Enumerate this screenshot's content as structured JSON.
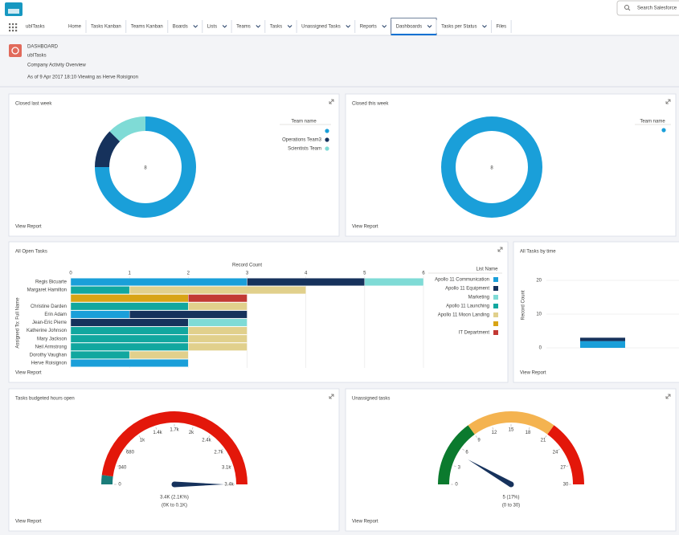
{
  "app": {
    "name": "ubITasks",
    "search_placeholder": "Search Salesforce"
  },
  "nav": {
    "items": [
      {
        "label": "Home"
      },
      {
        "label": "Tasks Kanban"
      },
      {
        "label": "Teams Kanban"
      },
      {
        "label": "Boards",
        "menu": true
      },
      {
        "label": "Lists",
        "menu": true
      },
      {
        "label": "Teams",
        "menu": true
      },
      {
        "label": "Tasks",
        "menu": true
      },
      {
        "label": "Unassigned Tasks",
        "menu": true
      },
      {
        "label": "Reports",
        "menu": true
      },
      {
        "label": "Dashboards",
        "menu": true,
        "active": true
      },
      {
        "label": "Tasks per Status",
        "menu": true
      },
      {
        "label": "Files"
      }
    ]
  },
  "header": {
    "kicker": "DASHBOARD",
    "title": "ubITasks",
    "subtitle": "Company Activity Overview",
    "meta": "As of 9 Apr 2017 18:10·Viewing as Herve Roisignon"
  },
  "widgets": [
    {
      "title": "Closed last week",
      "type": "donut",
      "total": 8,
      "legend_title": "Team name",
      "series": [
        {
          "name": null,
          "color": "#1a9fd9",
          "value": 6
        },
        {
          "name": "Operations Team3",
          "color": "#16325c",
          "value": 1
        },
        {
          "name": "Scientists Team",
          "color": "#7fdbd6",
          "value": 1
        }
      ],
      "link": "View Report"
    },
    {
      "title": "Closed this week",
      "type": "donut",
      "total": 8,
      "legend_title": "Team name",
      "series": [
        {
          "name": null,
          "color": "#1a9fd9",
          "value": 8
        }
      ],
      "link": "View Report"
    },
    {
      "title": "All Open Tasks",
      "type": "hbar",
      "x_title": "Record Count",
      "y_title": "Assigned To: Full Name",
      "categories": [
        "Regis Bicuarte",
        "Margaret Hamilton",
        null,
        "Christine Darden",
        "Erin Adam",
        "Jean-Eric Pierre",
        "Katherine Johnson",
        "Mary Jackson",
        "Neil Armstrong",
        "Dorothy Vaughan",
        "Herve Roisignon"
      ],
      "xlim": [
        0,
        6
      ],
      "xticks": [
        0,
        1,
        2,
        3,
        4,
        5,
        6
      ],
      "legend_title": "List Name",
      "series": [
        {
          "name": "Apollo 11 Communication",
          "color": "#1a9fd9",
          "values": [
            3,
            null,
            null,
            null,
            1,
            null,
            null,
            null,
            null,
            null,
            2
          ]
        },
        {
          "name": "Apollo 11 Equipment",
          "color": "#16325c",
          "values": [
            2,
            null,
            null,
            null,
            2,
            2,
            null,
            null,
            null,
            null,
            null
          ]
        },
        {
          "name": "Marketing",
          "color": "#7fdbd6",
          "values": [
            1,
            null,
            null,
            null,
            null,
            1,
            null,
            null,
            null,
            null,
            null
          ]
        },
        {
          "name": "Apollo 11 Launching",
          "color": "#11a79f",
          "values": [
            null,
            1,
            null,
            2,
            null,
            null,
            2,
            2,
            2,
            1,
            null
          ]
        },
        {
          "name": "Apollo 11 Moon Landing",
          "color": "#e1d08c",
          "values": [
            null,
            3,
            null,
            1,
            null,
            null,
            1,
            1,
            1,
            1,
            null
          ]
        },
        {
          "name": null,
          "color": "#d8a416",
          "values": [
            null,
            null,
            2,
            null,
            null,
            null,
            null,
            null,
            null,
            null,
            null
          ]
        },
        {
          "name": "IT Department",
          "color": "#c23934",
          "values": [
            null,
            null,
            1,
            null,
            null,
            null,
            null,
            null,
            null,
            null,
            null
          ]
        }
      ],
      "link": "View Report"
    },
    {
      "title": "All Tasks by time",
      "type": "column",
      "y_title": "Record Count",
      "categories": [
        null
      ],
      "ylim": [
        0,
        20
      ],
      "yticks": [
        0,
        10,
        20
      ],
      "series": [
        {
          "name": null,
          "color": "#1a9fd9",
          "values": [
            2
          ]
        },
        {
          "name": null,
          "color": "#16325c",
          "values": [
            1
          ]
        }
      ],
      "link": "View Report"
    },
    {
      "title": "Tasks budgeted hours open",
      "type": "gauge",
      "lim": [
        0,
        3400
      ],
      "ticks": [
        0,
        340,
        680,
        {
          "value": 1020,
          "label": "1k"
        },
        {
          "value": 1360,
          "label": "1.4k"
        },
        {
          "value": 1700,
          "label": "1.7k"
        },
        {
          "value": 2040,
          "label": "2k"
        },
        {
          "value": 2380,
          "label": "2.4k"
        },
        {
          "value": 2720,
          "label": "2.7k"
        },
        {
          "value": 3060,
          "label": "3.1k"
        },
        {
          "value": 3400,
          "label": "3.4k"
        }
      ],
      "bands": [
        {
          "from": 0,
          "to": 140,
          "color": "#1b7d7a"
        },
        {
          "from": 140,
          "to": 3400,
          "color": "#e3170a"
        }
      ],
      "value": 3400,
      "value_label": "3.4K (2.1K%)",
      "range_label": "(0K to 0.1K)",
      "value_color": "#c23934",
      "link": "View Report"
    },
    {
      "title": "Unassigned tasks",
      "type": "gauge",
      "lim": [
        0,
        30
      ],
      "ticks": [
        0,
        3,
        6,
        9,
        12,
        15,
        18,
        21,
        24,
        27,
        30
      ],
      "bands": [
        {
          "from": 0,
          "to": 9,
          "color": "#0b7a2e"
        },
        {
          "from": 9,
          "to": 21,
          "color": "#f4b350"
        },
        {
          "from": 21,
          "to": 30,
          "color": "#e3170a"
        }
      ],
      "value": 5,
      "value_label": "5 (17%)",
      "range_label": "(0 to 30)",
      "value_color": "#2e844a",
      "link": "View Report"
    }
  ]
}
